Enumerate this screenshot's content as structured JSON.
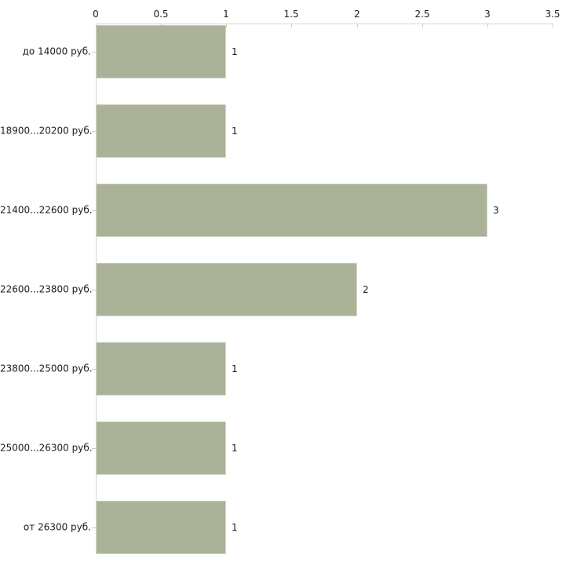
{
  "chart_data": {
    "type": "bar",
    "orientation": "horizontal",
    "title": "",
    "xlabel": "",
    "ylabel": "",
    "categories": [
      "до 14000 руб.",
      "18900...20200 руб.",
      "21400...22600 руб.",
      "22600...23800 руб.",
      "23800...25000 руб.",
      "25000...26300 руб.",
      "от 26300 руб."
    ],
    "values": [
      1,
      1,
      3,
      2,
      1,
      1,
      1
    ],
    "value_labels": [
      "1",
      "1",
      "3",
      "2",
      "1",
      "1",
      "1"
    ],
    "xticks": [
      0,
      0.5,
      1,
      1.5,
      2,
      2.5,
      3,
      3.5
    ],
    "xtick_labels": [
      "0",
      "0.5",
      "1",
      "1.5",
      "2",
      "2.5",
      "3",
      "3.5"
    ],
    "xlim": [
      0,
      3.5
    ],
    "axis_position": "top",
    "grid": "off",
    "legend": "none",
    "colors": {
      "bar_fill": "#aab298",
      "axis_line": "#d6d7cb",
      "tick": "#ced3b0",
      "text": "#1c1c1c",
      "background": "#ffffff"
    }
  }
}
